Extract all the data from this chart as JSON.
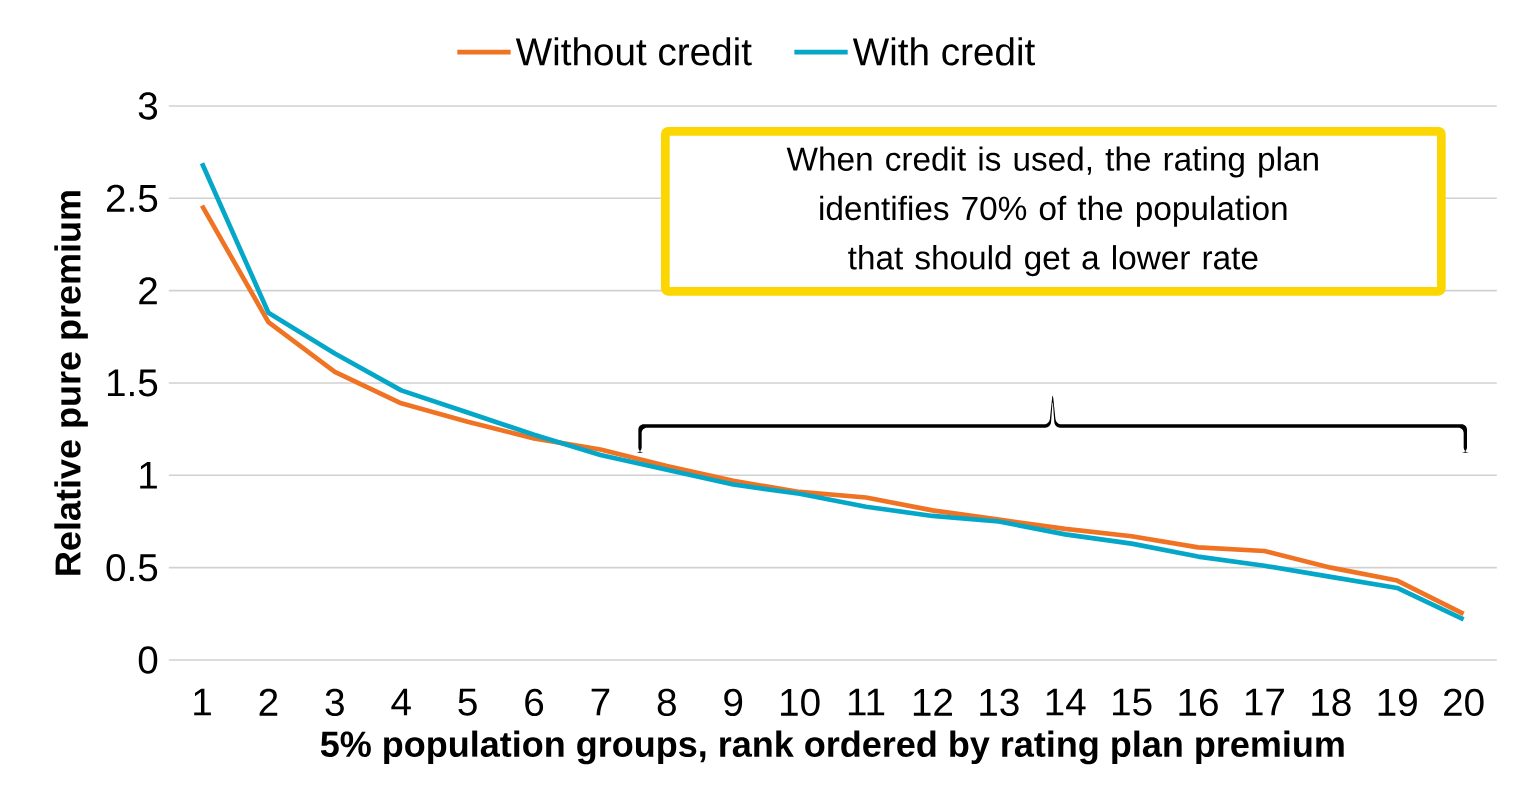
{
  "chart_data": {
    "type": "line",
    "categories": [
      "1",
      "2",
      "3",
      "4",
      "5",
      "6",
      "7",
      "8",
      "9",
      "10",
      "11",
      "12",
      "13",
      "14",
      "15",
      "16",
      "17",
      "18",
      "19",
      "20"
    ],
    "series": [
      {
        "name": "Without credit",
        "color": "#f07323",
        "values": [
          2.46,
          1.83,
          1.56,
          1.39,
          1.29,
          1.2,
          1.14,
          1.05,
          0.97,
          0.91,
          0.88,
          0.81,
          0.76,
          0.71,
          0.67,
          0.61,
          0.59,
          0.5,
          0.43,
          0.25
        ]
      },
      {
        "name": "With credit",
        "color": "#05a7c9",
        "values": [
          2.69,
          1.88,
          1.66,
          1.46,
          1.34,
          1.22,
          1.11,
          1.03,
          0.95,
          0.9,
          0.83,
          0.78,
          0.75,
          0.68,
          0.63,
          0.56,
          0.51,
          0.45,
          0.39,
          0.22
        ]
      }
    ],
    "xlabel": "5% population groups, rank ordered by rating plan premium",
    "ylabel": "Relative pure premium",
    "ylim": [
      0,
      3
    ],
    "yticks": [
      0,
      0.5,
      1,
      1.5,
      2,
      2.5,
      3
    ],
    "annotations": [
      "When credit is used, the rating plan identifies 70% of the population that should get a lower rate"
    ],
    "grid": "y",
    "legend": "top",
    "marker": "none",
    "line_style": "solid"
  }
}
